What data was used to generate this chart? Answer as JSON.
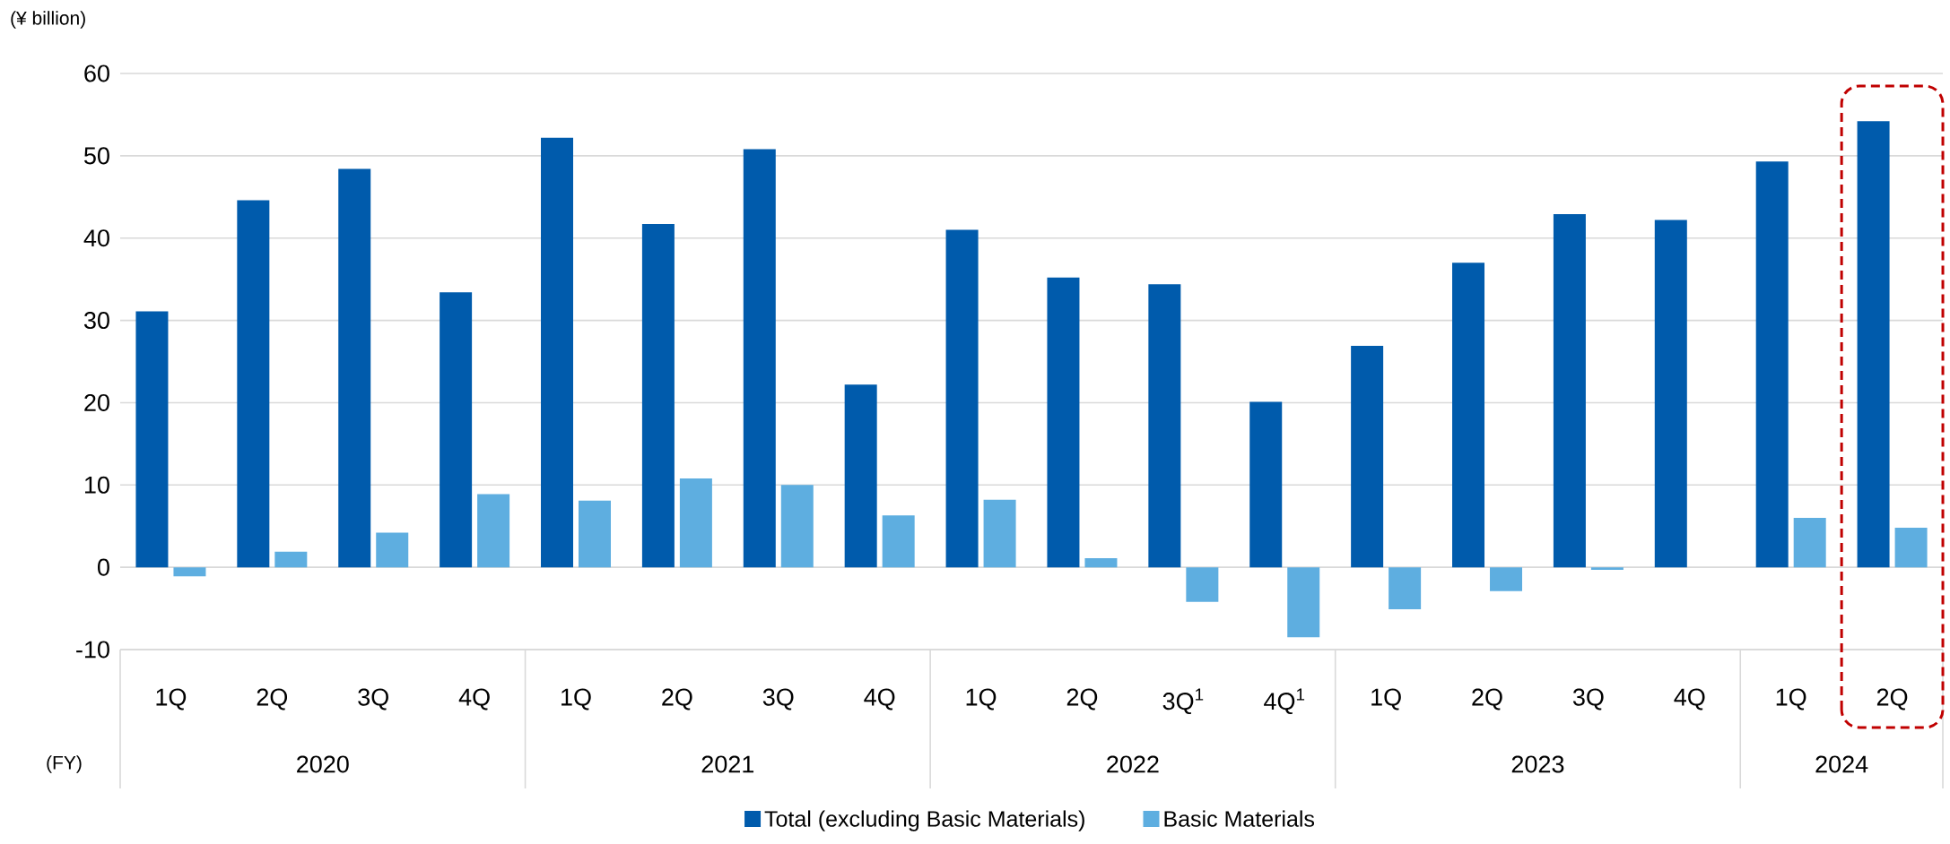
{
  "chart_data": {
    "type": "bar",
    "ylabel": "(¥ billion)",
    "categories": [
      "1Q",
      "2Q",
      "3Q",
      "4Q",
      "1Q",
      "2Q",
      "3Q",
      "4Q",
      "1Q",
      "2Q",
      "3Q$^{1}$",
      "4Q$^{1}$",
      "1Q",
      "2Q",
      "3Q",
      "4Q",
      "1Q",
      "2Q"
    ],
    "series": [
      {
        "name": "Total (excluding Basic Materials)",
        "color": "#005bac",
        "values": [
          31.1,
          44.6,
          48.4,
          33.4,
          52.2,
          41.7,
          50.8,
          22.2,
          41.0,
          35.2,
          34.4,
          20.1,
          26.9,
          37.0,
          42.9,
          42.2,
          49.3,
          54.2
        ]
      },
      {
        "name": "Basic Materials",
        "color": "#5eaee0",
        "values": [
          -1.1,
          1.9,
          4.2,
          8.9,
          8.1,
          10.8,
          10.0,
          6.3,
          8.2,
          1.1,
          -4.2,
          -8.5,
          -5.1,
          -2.9,
          -0.3,
          null,
          6.0,
          4.8
        ]
      }
    ],
    "ylim": [
      -10,
      60
    ],
    "yticks": [
      -10,
      0,
      10,
      20,
      30,
      40,
      50,
      60
    ],
    "grid": "y",
    "legend": "bottom",
    "annotations": [
      "(FY)",
      "2020",
      "2021",
      "2022",
      "2023",
      "2024"
    ]
  }
}
